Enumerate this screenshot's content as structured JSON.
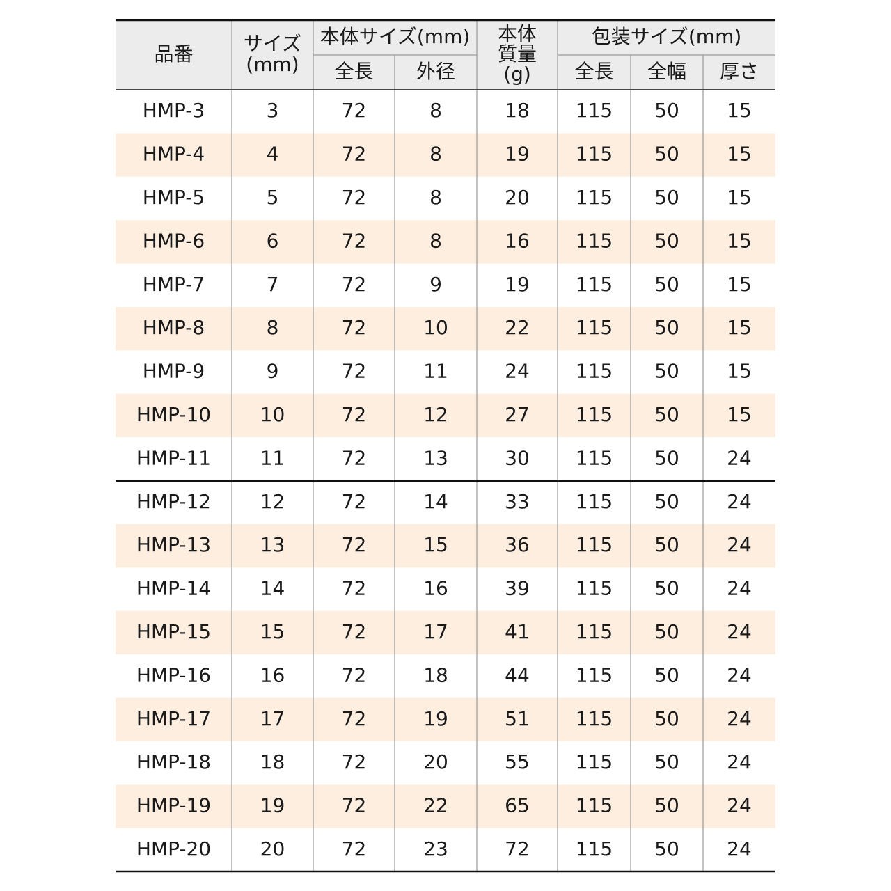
{
  "table": {
    "header": {
      "product_no": "品番",
      "size": [
        "サイズ",
        "(mm)"
      ],
      "body_size": "本体サイズ(mm)",
      "body_length": "全長",
      "body_diameter": "外径",
      "body_mass": [
        "本体",
        "質量",
        "(g)"
      ],
      "package_size": "包装サイズ(mm)",
      "package_length": "全長",
      "package_width": "全幅",
      "package_thickness": "厚さ"
    },
    "rows": [
      [
        "HMP-3",
        3,
        72,
        8,
        18,
        115,
        50,
        15
      ],
      [
        "HMP-4",
        4,
        72,
        8,
        19,
        115,
        50,
        15
      ],
      [
        "HMP-5",
        5,
        72,
        8,
        20,
        115,
        50,
        15
      ],
      [
        "HMP-6",
        6,
        72,
        8,
        16,
        115,
        50,
        15
      ],
      [
        "HMP-7",
        7,
        72,
        9,
        19,
        115,
        50,
        15
      ],
      [
        "HMP-8",
        8,
        72,
        10,
        22,
        115,
        50,
        15
      ],
      [
        "HMP-9",
        9,
        72,
        11,
        24,
        115,
        50,
        15
      ],
      [
        "HMP-10",
        10,
        72,
        12,
        27,
        115,
        50,
        15
      ],
      [
        "HMP-11",
        11,
        72,
        13,
        30,
        115,
        50,
        24
      ],
      [
        "HMP-12",
        12,
        72,
        14,
        33,
        115,
        50,
        24
      ],
      [
        "HMP-13",
        13,
        72,
        15,
        36,
        115,
        50,
        24
      ],
      [
        "HMP-14",
        14,
        72,
        16,
        39,
        115,
        50,
        24
      ],
      [
        "HMP-15",
        15,
        72,
        17,
        41,
        115,
        50,
        24
      ],
      [
        "HMP-16",
        16,
        72,
        18,
        44,
        115,
        50,
        24
      ],
      [
        "HMP-17",
        17,
        72,
        19,
        51,
        115,
        50,
        24
      ],
      [
        "HMP-18",
        18,
        72,
        20,
        55,
        115,
        50,
        24
      ],
      [
        "HMP-19",
        19,
        72,
        22,
        65,
        115,
        50,
        24
      ],
      [
        "HMP-20",
        20,
        72,
        23,
        72,
        115,
        50,
        24
      ]
    ]
  }
}
